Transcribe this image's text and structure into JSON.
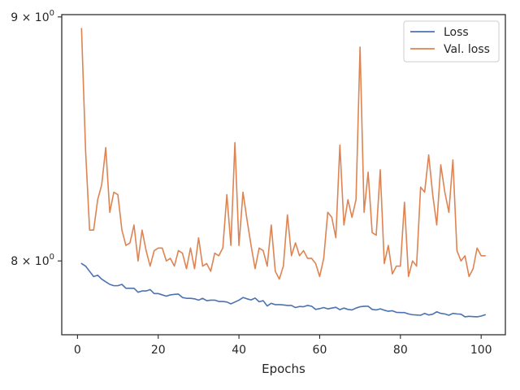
{
  "chart_data": {
    "type": "line",
    "xlabel": "Epochs",
    "ylabel": "",
    "xlim": [
      -3.9,
      106
    ],
    "ylim": [
      7.72,
      9.01
    ],
    "y_scale": "log",
    "x_ticks": [
      0,
      20,
      40,
      60,
      80,
      100
    ],
    "y_ticks": [
      {
        "value": 8.0,
        "label_base": "8",
        "label_exp": "0"
      },
      {
        "value": 9.0,
        "label_base": "9",
        "label_exp": "0"
      }
    ],
    "grid": false,
    "legend_position": "top-right",
    "x": [
      1,
      2,
      3,
      4,
      5,
      6,
      7,
      8,
      9,
      10,
      11,
      12,
      13,
      14,
      15,
      16,
      17,
      18,
      19,
      20,
      21,
      22,
      23,
      24,
      25,
      26,
      27,
      28,
      29,
      30,
      31,
      32,
      33,
      34,
      35,
      36,
      37,
      38,
      39,
      40,
      41,
      42,
      43,
      44,
      45,
      46,
      47,
      48,
      49,
      50,
      51,
      52,
      53,
      54,
      55,
      56,
      57,
      58,
      59,
      60,
      61,
      62,
      63,
      64,
      65,
      66,
      67,
      68,
      69,
      70,
      71,
      72,
      73,
      74,
      75,
      76,
      77,
      78,
      79,
      80,
      81,
      82,
      83,
      84,
      85,
      86,
      87,
      88,
      89,
      90,
      91,
      92,
      93,
      94,
      95,
      96,
      97,
      98,
      99,
      100,
      101
    ],
    "series": [
      {
        "name": "Loss",
        "color": "#4c72b0",
        "values": [
          7.99,
          7.98,
          7.96,
          7.94,
          7.945,
          7.93,
          7.92,
          7.91,
          7.905,
          7.905,
          7.91,
          7.895,
          7.895,
          7.895,
          7.88,
          7.885,
          7.885,
          7.89,
          7.875,
          7.875,
          7.87,
          7.865,
          7.87,
          7.872,
          7.873,
          7.86,
          7.857,
          7.857,
          7.855,
          7.85,
          7.857,
          7.848,
          7.85,
          7.85,
          7.845,
          7.845,
          7.843,
          7.836,
          7.843,
          7.85,
          7.86,
          7.855,
          7.851,
          7.858,
          7.844,
          7.848,
          7.828,
          7.838,
          7.833,
          7.833,
          7.832,
          7.83,
          7.83,
          7.822,
          7.826,
          7.825,
          7.83,
          7.827,
          7.815,
          7.818,
          7.822,
          7.817,
          7.82,
          7.823,
          7.814,
          7.82,
          7.815,
          7.813,
          7.82,
          7.825,
          7.827,
          7.827,
          7.815,
          7.813,
          7.817,
          7.812,
          7.808,
          7.81,
          7.804,
          7.803,
          7.803,
          7.798,
          7.795,
          7.794,
          7.793,
          7.8,
          7.794,
          7.797,
          7.806,
          7.8,
          7.798,
          7.793,
          7.8,
          7.798,
          7.797,
          7.787,
          7.789,
          7.788,
          7.787,
          7.79,
          7.795
        ]
      },
      {
        "name": "Val. loss",
        "color": "#dd8452",
        "values": [
          8.95,
          8.44,
          8.12,
          8.12,
          8.24,
          8.3,
          8.45,
          8.19,
          8.27,
          8.26,
          8.12,
          8.06,
          8.07,
          8.14,
          8.0,
          8.12,
          8.04,
          7.98,
          8.04,
          8.05,
          8.05,
          8.0,
          8.01,
          7.98,
          8.04,
          8.03,
          7.97,
          8.05,
          7.97,
          8.09,
          7.98,
          7.99,
          7.96,
          8.03,
          8.02,
          8.05,
          8.26,
          8.06,
          8.47,
          8.06,
          8.27,
          8.16,
          8.06,
          7.97,
          8.05,
          8.04,
          7.98,
          8.14,
          7.96,
          7.93,
          7.98,
          8.18,
          8.02,
          8.07,
          8.02,
          8.04,
          8.01,
          8.01,
          7.99,
          7.94,
          8.01,
          8.19,
          8.17,
          8.09,
          8.46,
          8.14,
          8.24,
          8.17,
          8.24,
          8.87,
          8.19,
          8.35,
          8.11,
          8.1,
          8.36,
          7.99,
          8.06,
          7.95,
          7.98,
          7.98,
          8.23,
          7.94,
          8.0,
          7.98,
          8.29,
          8.27,
          8.42,
          8.26,
          8.14,
          8.38,
          8.27,
          8.19,
          8.4,
          8.04,
          8.0,
          8.02,
          7.94,
          7.97,
          8.05,
          8.02,
          8.02
        ]
      }
    ]
  }
}
